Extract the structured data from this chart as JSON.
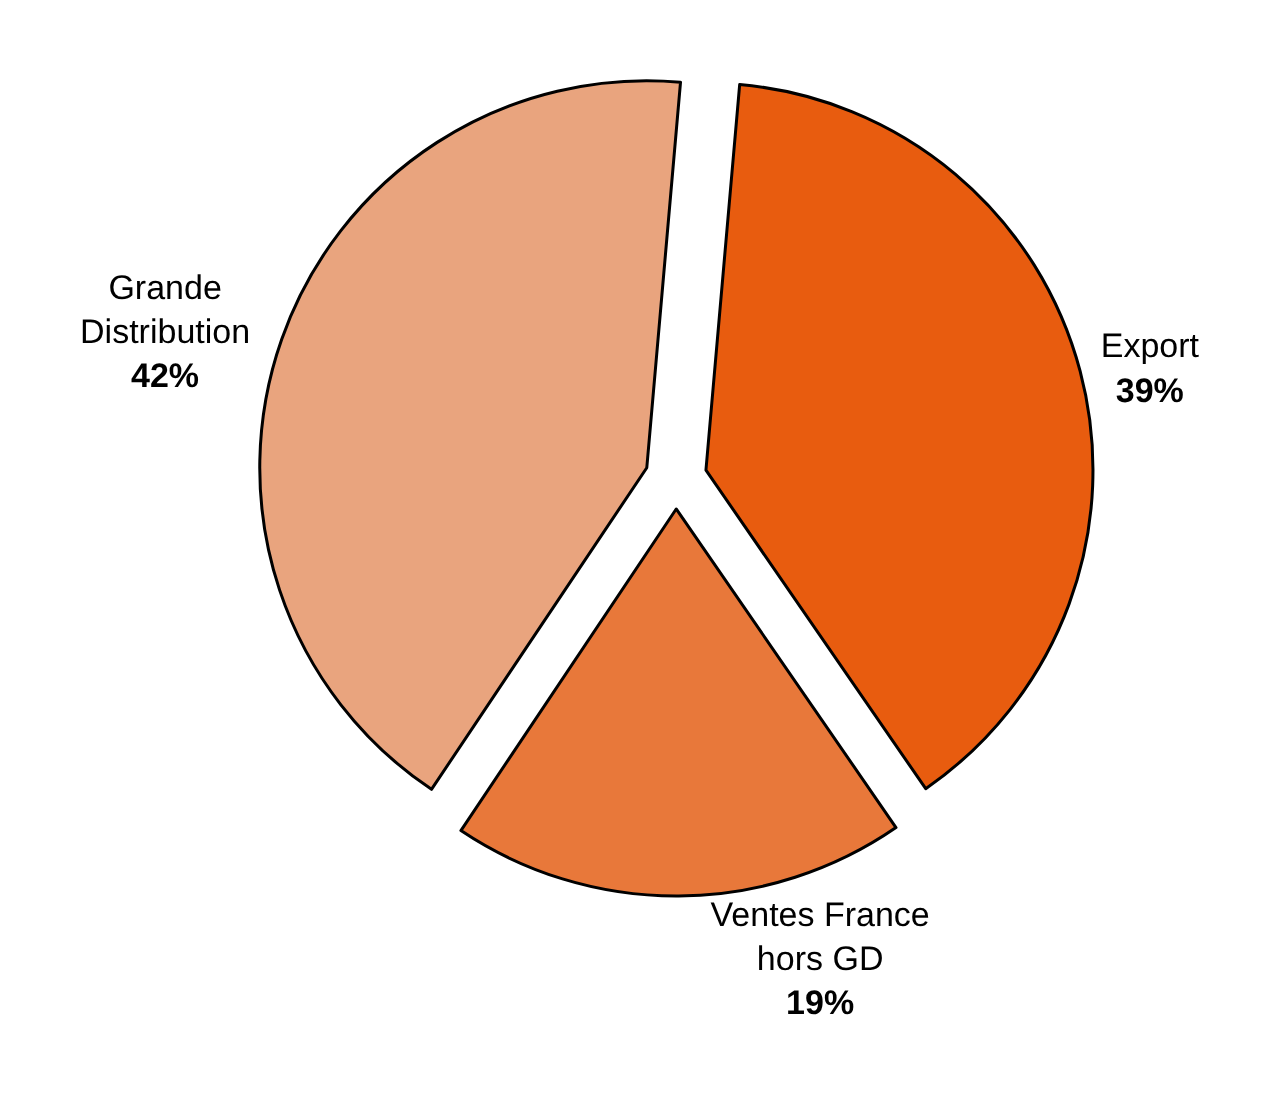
{
  "chart_data": {
    "type": "pie",
    "categories": [
      "Export",
      "Ventes France\nhors GD",
      "Grande\nDistribution"
    ],
    "values": [
      39,
      19,
      42
    ],
    "colors": [
      "#e85c0f",
      "#e8783a",
      "#e9a47e"
    ],
    "value_labels": [
      "39%",
      "19%",
      "42%"
    ],
    "legend": false
  }
}
